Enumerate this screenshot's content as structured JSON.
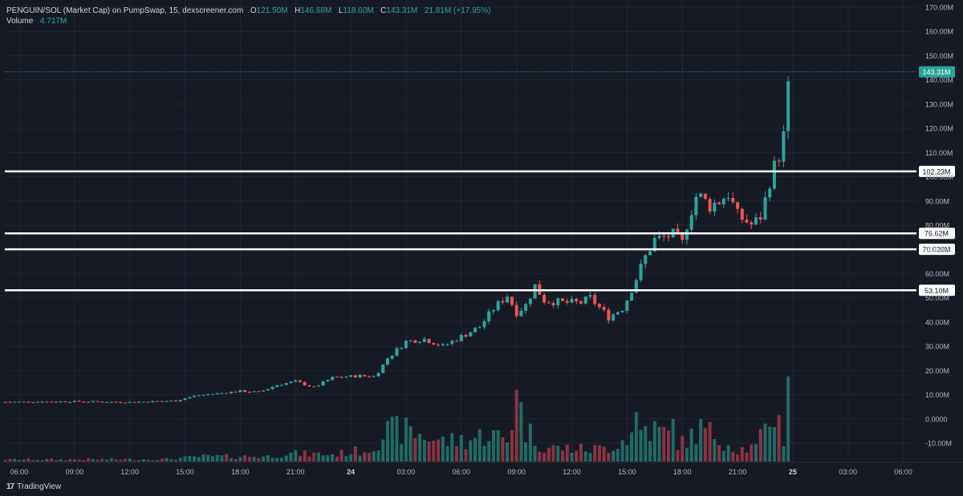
{
  "legend": {
    "symbol": "PENGUIN/SOL (Market Cap) on PumpSwap, 15, dexscreener.com",
    "o_label": "O",
    "o_value": "121.50M",
    "h_label": "H",
    "h_value": "146.68M",
    "l_label": "L",
    "l_value": "118.60M",
    "c_label": "C",
    "c_value": "143.31M",
    "change": "21.81M (+17.95%)",
    "volume_label": "Volume",
    "volume_value": "4.717M"
  },
  "brand": {
    "label": "TradingView",
    "mark": "17"
  },
  "colors": {
    "background": "#161a25",
    "grid": "#222632",
    "up": "#26a69a",
    "down": "#ef5350",
    "up_volume": "#1f6b64",
    "down_volume": "#8a3240",
    "level_line": "#ffffff",
    "axis_text": "#b2b5be",
    "price_tag_bg": "#26a69a"
  },
  "chart_data": {
    "type": "candlestick",
    "y_axis_ticks": [
      "170.00M",
      "160.00M",
      "150.00M",
      "140.00M",
      "130.00M",
      "120.00M",
      "110.00M",
      "100.00M",
      "90.00M",
      "80.00M",
      "70.00M",
      "60.00M",
      "50.00M",
      "40.00M",
      "30.00M",
      "20.00M",
      "10.00M",
      "0.0000",
      "-10.00M"
    ],
    "y_axis_values": [
      170,
      160,
      150,
      140,
      130,
      120,
      110,
      100,
      90,
      80,
      70,
      60,
      50,
      40,
      30,
      20,
      10,
      0,
      -10
    ],
    "y_unit": "M",
    "x_axis_ticks": [
      {
        "label": "06:00",
        "hour": 6
      },
      {
        "label": "09:00",
        "hour": 9
      },
      {
        "label": "12:00",
        "hour": 12
      },
      {
        "label": "15:00",
        "hour": 15
      },
      {
        "label": "18:00",
        "hour": 18
      },
      {
        "label": "21:00",
        "hour": 21
      },
      {
        "label": "24",
        "hour": 24,
        "bold": true
      },
      {
        "label": "03:00",
        "hour": 27
      },
      {
        "label": "06:00",
        "hour": 30
      },
      {
        "label": "09:00",
        "hour": 33
      },
      {
        "label": "12:00",
        "hour": 36
      },
      {
        "label": "15:00",
        "hour": 39
      },
      {
        "label": "18:00",
        "hour": 42
      },
      {
        "label": "21:00",
        "hour": 45
      },
      {
        "label": "25",
        "hour": 48,
        "bold": true
      },
      {
        "label": "03:00",
        "hour": 51
      },
      {
        "label": "06:00",
        "hour": 54
      }
    ],
    "level_lines": [
      {
        "value": 102.23,
        "label": "102.23M"
      },
      {
        "value": 76.62,
        "label": "76.62M"
      },
      {
        "value": 70.02,
        "label": "70.020M"
      },
      {
        "value": 53.1,
        "label": "53.10M"
      }
    ],
    "last_price": {
      "value": 143.31,
      "label": "143.31M"
    },
    "bar_interval_minutes": 15,
    "first_bar_hour": 5.25,
    "close_path": [
      [
        5.25,
        7.0
      ],
      [
        9.0,
        7.2
      ],
      [
        12.0,
        6.9
      ],
      [
        14.5,
        7.5
      ],
      [
        15.5,
        9.5
      ],
      [
        18.0,
        11.5
      ],
      [
        19.0,
        11.0
      ],
      [
        20.0,
        14.0
      ],
      [
        21.0,
        15.5
      ],
      [
        22.0,
        13.0
      ],
      [
        23.0,
        17.0
      ],
      [
        24.5,
        17.8
      ],
      [
        25.3,
        17.5
      ],
      [
        26.0,
        25.0
      ],
      [
        27.0,
        32.0
      ],
      [
        28.0,
        33.0
      ],
      [
        29.0,
        30.0
      ],
      [
        30.0,
        34.0
      ],
      [
        31.0,
        38.0
      ],
      [
        31.8,
        46.0
      ],
      [
        32.5,
        51.0
      ],
      [
        33.0,
        44.0
      ],
      [
        33.5,
        47.0
      ],
      [
        34.0,
        55.0
      ],
      [
        34.5,
        49.0
      ],
      [
        35.5,
        48.0
      ],
      [
        36.5,
        48.0
      ],
      [
        37.0,
        50.0
      ],
      [
        38.0,
        42.0
      ],
      [
        38.8,
        46.0
      ],
      [
        39.5,
        58.0
      ],
      [
        40.0,
        67.0
      ],
      [
        40.5,
        74.0
      ],
      [
        41.5,
        76.0
      ],
      [
        42.0,
        72.5
      ],
      [
        42.3,
        82.0
      ],
      [
        42.8,
        93.0
      ],
      [
        43.5,
        88.0
      ],
      [
        44.0,
        90.0
      ],
      [
        44.5,
        93.0
      ],
      [
        45.0,
        84.0
      ],
      [
        45.8,
        80.0
      ],
      [
        46.3,
        84.0
      ],
      [
        46.8,
        100.0
      ],
      [
        47.3,
        110.0
      ],
      [
        47.65,
        121.5
      ],
      [
        47.8,
        143.31
      ]
    ],
    "volume_path": [
      [
        5.25,
        1.0
      ],
      [
        14.0,
        1.2
      ],
      [
        16.0,
        2.5
      ],
      [
        19.5,
        2.5
      ],
      [
        20.5,
        4.0
      ],
      [
        23.0,
        3.5
      ],
      [
        25.0,
        6.0
      ],
      [
        25.8,
        14.0
      ],
      [
        26.5,
        16.0
      ],
      [
        27.5,
        14.0
      ],
      [
        29.0,
        10.0
      ],
      [
        30.5,
        11.0
      ],
      [
        31.5,
        14.0
      ],
      [
        32.5,
        10.0
      ],
      [
        33.0,
        32.0
      ],
      [
        33.5,
        16.0
      ],
      [
        34.5,
        7.0
      ],
      [
        36.0,
        6.5
      ],
      [
        37.0,
        6.0
      ],
      [
        38.0,
        7.0
      ],
      [
        39.0,
        12.0
      ],
      [
        40.0,
        17.0
      ],
      [
        41.0,
        14.0
      ],
      [
        42.0,
        9.0
      ],
      [
        43.0,
        16.0
      ],
      [
        44.0,
        12.0
      ],
      [
        45.0,
        6.0
      ],
      [
        46.0,
        7.0
      ],
      [
        46.5,
        15.0
      ],
      [
        47.0,
        26.0
      ],
      [
        47.5,
        12.0
      ],
      [
        47.8,
        38.0
      ]
    ],
    "volume_spikes": [
      {
        "hour": 33.0,
        "value": 32.0
      },
      {
        "hour": 26.3,
        "value": 20.0
      },
      {
        "hour": 39.5,
        "value": 22.0
      },
      {
        "hour": 41.5,
        "value": 19.0
      },
      {
        "hour": 43.3,
        "value": 15.0
      },
      {
        "hour": 47.8,
        "value": 38.0
      }
    ]
  }
}
